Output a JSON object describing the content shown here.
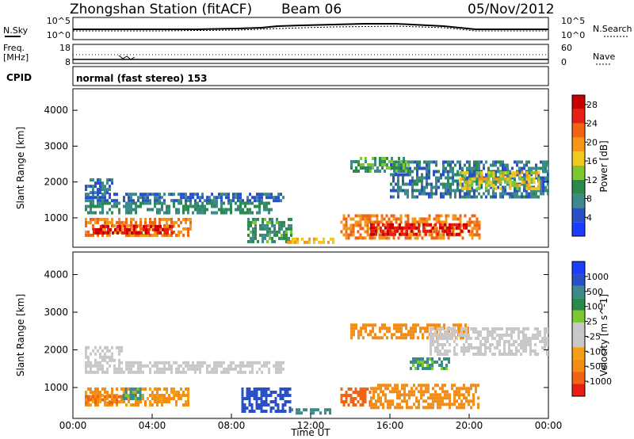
{
  "header": {
    "station": "Zhongshan Station (fitACF)",
    "beam": "Beam 06",
    "date": "05/Nov/2012"
  },
  "noise_panel": {
    "left_label": "N.Sky",
    "right_label": "N.Search",
    "left_ticks": [
      "10^5",
      "10^0"
    ],
    "right_ticks": [
      "10^5",
      "10^0"
    ]
  },
  "freq_panel": {
    "left_label_1": "Freq.",
    "left_label_2": "[MHz]",
    "right_label": "Nave",
    "left_ticks": [
      "18",
      "8"
    ],
    "right_ticks": [
      "60",
      "0"
    ]
  },
  "cpid": {
    "label": "CPID",
    "mode": "normal (fast stereo) 153"
  },
  "x_axis": {
    "label": "Time UT",
    "ticks": [
      "00:00",
      "04:00",
      "08:00",
      "12:00",
      "16:00",
      "20:00",
      "00:00"
    ]
  },
  "colors": {
    "power": [
      "#1a3cff",
      "#2a50c8",
      "#3d8a8a",
      "#2a8a4a",
      "#7dc832",
      "#f0c81e",
      "#f59614",
      "#f06414",
      "#e61e14",
      "#c80000"
    ],
    "velocity": [
      "#1a3cff",
      "#2a50c8",
      "#3d8a8a",
      "#2a8a4a",
      "#7dc832",
      "#c8c8c8",
      "#c8c8c8",
      "#f5a014",
      "#f58c14",
      "#f06414",
      "#e61e14"
    ]
  },
  "chart_data": [
    {
      "type": "heatmap",
      "title": "",
      "xlabel": "Time UT",
      "ylabel": "Slant Range [km]",
      "xlim": [
        "00:00",
        "24:00"
      ],
      "ylim": [
        180,
        4600
      ],
      "y_ticks": [
        1000,
        2000,
        3000,
        4000
      ],
      "colorbar": {
        "label": "Power [dB]",
        "ticks": [
          "4",
          "8",
          "12",
          "16",
          "20",
          "24",
          "28"
        ],
        "range": [
          0,
          30
        ]
      },
      "regions": [
        {
          "t0": 0.6,
          "t1": 10.6,
          "r0": 1500,
          "r1": 1700,
          "value": 6
        },
        {
          "t0": 0.6,
          "t1": 10.0,
          "r0": 1150,
          "r1": 1450,
          "value": 9
        },
        {
          "t0": 0.6,
          "t1": 2.0,
          "r0": 1700,
          "r1": 2100,
          "value": 6
        },
        {
          "t0": 0.6,
          "t1": 6.0,
          "r0": 500,
          "r1": 1000,
          "value": 21
        },
        {
          "t0": 1.0,
          "t1": 5.0,
          "r0": 550,
          "r1": 800,
          "value": 27
        },
        {
          "t0": 8.8,
          "t1": 11.0,
          "r0": 350,
          "r1": 1000,
          "value": 10
        },
        {
          "t0": 10.8,
          "t1": 13.2,
          "r0": 300,
          "r1": 450,
          "value": 18
        },
        {
          "t0": 13.5,
          "t1": 20.5,
          "r0": 450,
          "r1": 1100,
          "value": 21
        },
        {
          "t0": 15.0,
          "t1": 20.0,
          "r0": 550,
          "r1": 850,
          "value": 27
        },
        {
          "t0": 16.0,
          "t1": 24.0,
          "r0": 1600,
          "r1": 2600,
          "value": 7
        },
        {
          "t0": 19.5,
          "t1": 23.5,
          "r0": 1800,
          "r1": 2300,
          "value": 16
        },
        {
          "t0": 14.0,
          "t1": 17.0,
          "r0": 2300,
          "r1": 2700,
          "value": 11
        }
      ]
    },
    {
      "type": "heatmap",
      "title": "",
      "xlabel": "Time UT",
      "ylabel": "Slant Range [km]",
      "xlim": [
        "00:00",
        "24:00"
      ],
      "ylim": [
        180,
        4600
      ],
      "y_ticks": [
        1000,
        2000,
        3000,
        4000
      ],
      "colorbar": {
        "label": "Velocity [m s^-1]",
        "ticks": [
          "1000",
          "500",
          "100",
          "25",
          "-25",
          "-100",
          "-500",
          "-1000"
        ]
      },
      "regions": [
        {
          "t0": 0.6,
          "t1": 10.6,
          "r0": 1400,
          "r1": 1700,
          "value": 0
        },
        {
          "t0": 0.6,
          "t1": 2.5,
          "r0": 1700,
          "r1": 2100,
          "value": 0
        },
        {
          "t0": 0.6,
          "t1": 5.8,
          "r0": 500,
          "r1": 1000,
          "value": -150
        },
        {
          "t0": 0.6,
          "t1": 2.5,
          "r0": 550,
          "r1": 800,
          "value": -500
        },
        {
          "t0": 2.5,
          "t1": 3.5,
          "r0": 700,
          "r1": 1000,
          "value": 150
        },
        {
          "t0": 8.5,
          "t1": 11.0,
          "r0": 350,
          "r1": 1000,
          "value": 600
        },
        {
          "t0": 11.0,
          "t1": 13.0,
          "r0": 300,
          "r1": 450,
          "value": 200
        },
        {
          "t0": 13.5,
          "t1": 15.0,
          "r0": 500,
          "r1": 1000,
          "value": -700
        },
        {
          "t0": 15.0,
          "t1": 20.5,
          "r0": 500,
          "r1": 1100,
          "value": -300
        },
        {
          "t0": 14.0,
          "t1": 20.0,
          "r0": 2300,
          "r1": 2700,
          "value": -200
        },
        {
          "t0": 18.0,
          "t1": 24.0,
          "r0": 1900,
          "r1": 2600,
          "value": 0
        },
        {
          "t0": 17.0,
          "t1": 19.0,
          "r0": 1500,
          "r1": 1800,
          "value": 120
        }
      ]
    }
  ]
}
